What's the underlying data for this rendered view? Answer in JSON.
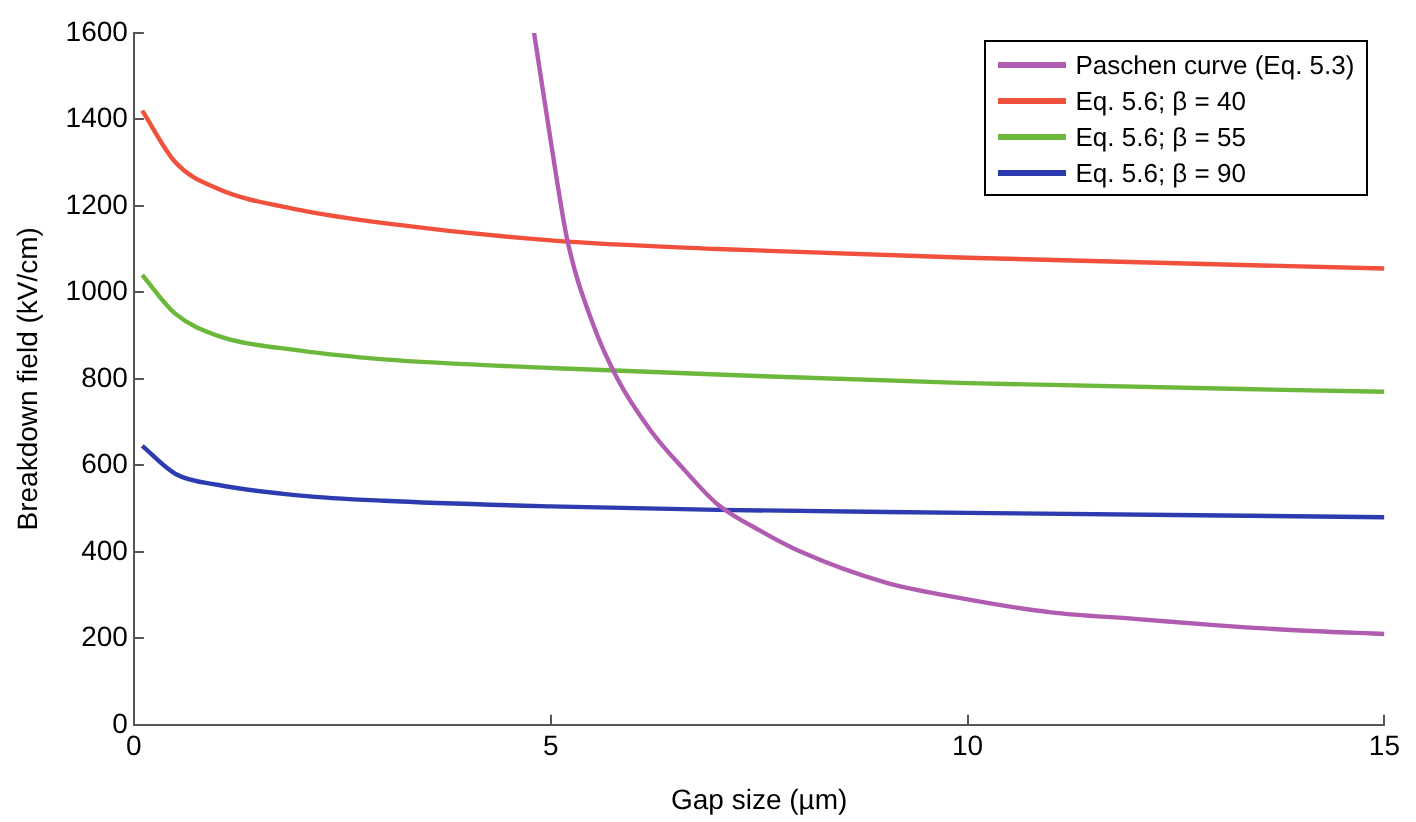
{
  "chart_data": {
    "type": "line",
    "xlabel": "Gap size (µm)",
    "ylabel": "Breakdown field (kV/cm)",
    "xlim": [
      0,
      15
    ],
    "xticks": [
      0,
      5,
      10,
      15
    ],
    "ylim": [
      0,
      1600
    ],
    "yticks": [
      0,
      200,
      400,
      600,
      800,
      1000,
      1200,
      1400,
      1600
    ],
    "grid": false,
    "legend": "top right",
    "marker": "none",
    "line_style": "solid",
    "series": [
      {
        "name": "Paschen curve (Eq. 5.3)",
        "color": "#b05cb0",
        "x": [
          4.8,
          5.0,
          5.2,
          5.5,
          5.8,
          6.2,
          6.6,
          7,
          7.5,
          8,
          9,
          10,
          11,
          12,
          13,
          14,
          15
        ],
        "values": [
          1600,
          1350,
          1120,
          930,
          800,
          680,
          590,
          510,
          450,
          400,
          330,
          290,
          260,
          245,
          230,
          218,
          210
        ]
      },
      {
        "name": "Eq. 5.6; β = 40",
        "color": "#f0503c",
        "x": [
          0.1,
          0.5,
          1,
          2,
          3,
          5,
          7,
          10,
          15
        ],
        "values": [
          1420,
          1300,
          1240,
          1190,
          1160,
          1120,
          1100,
          1080,
          1055
        ]
      },
      {
        "name": "Eq. 5.6; β = 55",
        "color": "#6cb83c",
        "x": [
          0.1,
          0.5,
          1,
          2,
          3,
          5,
          7,
          10,
          15
        ],
        "values": [
          1040,
          950,
          900,
          865,
          845,
          825,
          810,
          790,
          770
        ]
      },
      {
        "name": "Eq. 5.6; β = 90",
        "color": "#2c3cb0",
        "x": [
          0.1,
          0.5,
          1,
          2,
          3,
          5,
          7,
          10,
          15
        ],
        "values": [
          645,
          580,
          555,
          530,
          518,
          505,
          497,
          490,
          480
        ]
      }
    ]
  }
}
